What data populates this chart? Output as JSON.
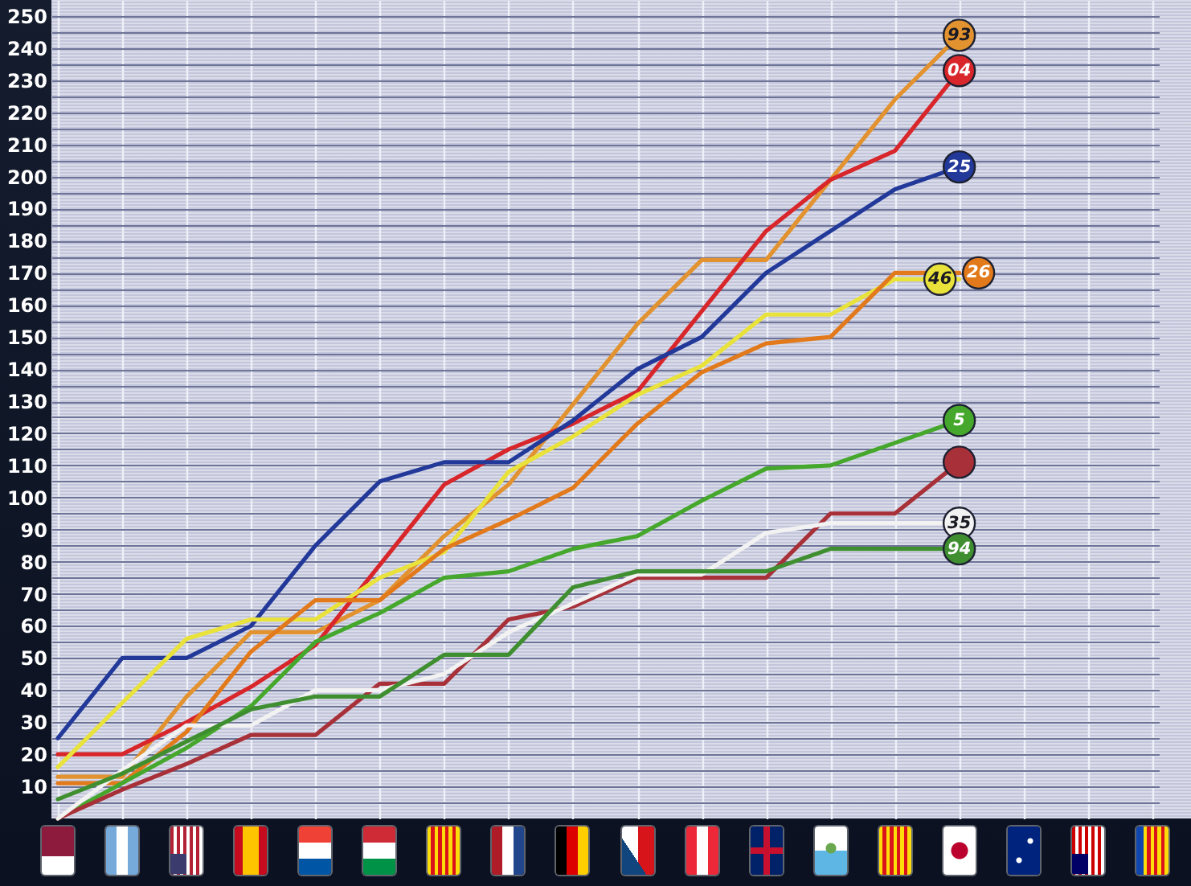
{
  "chart_data": {
    "type": "line",
    "categories": [
      null,
      null,
      null,
      null,
      null,
      null,
      null,
      null,
      null,
      null,
      null,
      null,
      null,
      null,
      null,
      null,
      null,
      null
    ],
    "series": [
      {
        "name": "93",
        "color": "#e2922e",
        "values": [
          13,
          13,
          38,
          58,
          58,
          68,
          88,
          104,
          129,
          154,
          174,
          174,
          199,
          224,
          244,
          null,
          null,
          null
        ]
      },
      {
        "name": "04",
        "color": "#d8262a",
        "values": [
          20,
          20,
          30,
          41,
          54,
          79,
          104,
          115,
          123,
          133,
          158,
          183,
          199,
          208,
          233,
          null,
          null,
          null
        ]
      },
      {
        "name": "25",
        "color": "#22399a",
        "values": [
          25,
          50,
          50,
          60,
          85,
          105,
          111,
          111,
          124,
          140,
          150,
          170,
          183,
          196,
          203,
          null,
          null,
          null
        ]
      },
      {
        "name": "46",
        "color": "#e9e23a",
        "values": [
          16,
          36,
          56,
          62,
          62,
          75,
          83,
          108,
          119,
          132,
          141,
          157,
          157,
          168,
          168,
          null,
          null,
          null
        ]
      },
      {
        "name": "26",
        "color": "#e27a1c",
        "values": [
          11,
          11,
          27,
          52,
          68,
          68,
          84,
          93,
          103,
          123,
          139,
          148,
          150,
          170,
          170,
          null,
          null,
          null
        ]
      },
      {
        "name": "5",
        "color": "#45a82c",
        "values": [
          0,
          11,
          22,
          35,
          55,
          64,
          75,
          77,
          84,
          88,
          99,
          109,
          110,
          117,
          124,
          null,
          null,
          null
        ]
      },
      {
        "color": "#a83038",
        "values": [
          0,
          9,
          17,
          26,
          26,
          42,
          42,
          62,
          66,
          75,
          75,
          75,
          95,
          95,
          111,
          null,
          null,
          null
        ]
      },
      {
        "name": "35",
        "color": "#f2f2f2",
        "values": [
          0,
          15,
          29,
          29,
          40,
          40,
          45,
          58,
          67,
          76,
          76,
          89,
          92,
          92,
          92,
          null,
          null,
          null
        ]
      },
      {
        "name": "94",
        "color": "#3f8f30",
        "values": [
          6,
          14,
          24,
          34,
          38,
          38,
          51,
          51,
          72,
          77,
          77,
          77,
          84,
          84,
          84,
          null,
          null,
          null
        ]
      }
    ],
    "ylim": [
      0,
      255
    ],
    "yticks": [
      {
        "value": 5,
        "label": null
      },
      10,
      {
        "value": 15,
        "label": null
      },
      20,
      {
        "value": 25,
        "label": null
      },
      30,
      {
        "value": 35,
        "label": null
      },
      40,
      {
        "value": 45,
        "label": null
      },
      50,
      {
        "value": 55,
        "label": null
      },
      60,
      {
        "value": 65,
        "label": null
      },
      70,
      {
        "value": 75,
        "label": null
      },
      80,
      {
        "value": 85,
        "label": null
      },
      90,
      {
        "value": 95,
        "label": null
      },
      100,
      {
        "value": 105,
        "label": null
      },
      110,
      {
        "value": 115,
        "label": null
      },
      120,
      {
        "value": 125,
        "label": null
      },
      130,
      {
        "value": 135,
        "label": null
      },
      140,
      {
        "value": 145,
        "label": null
      },
      150,
      {
        "value": 155,
        "label": null
      },
      160,
      {
        "value": 165,
        "label": null
      },
      170,
      {
        "value": 175,
        "label": null
      },
      180,
      {
        "value": 185,
        "label": null
      },
      190,
      {
        "value": 195,
        "label": null
      },
      200,
      {
        "value": 205,
        "label": null
      },
      210,
      {
        "value": 215,
        "label": null
      },
      220,
      {
        "value": 225,
        "label": null
      },
      230,
      {
        "value": 235,
        "label": null
      },
      240,
      {
        "value": 245,
        "label": null
      },
      250
    ],
    "grid": true,
    "line_style": "solid"
  }
}
